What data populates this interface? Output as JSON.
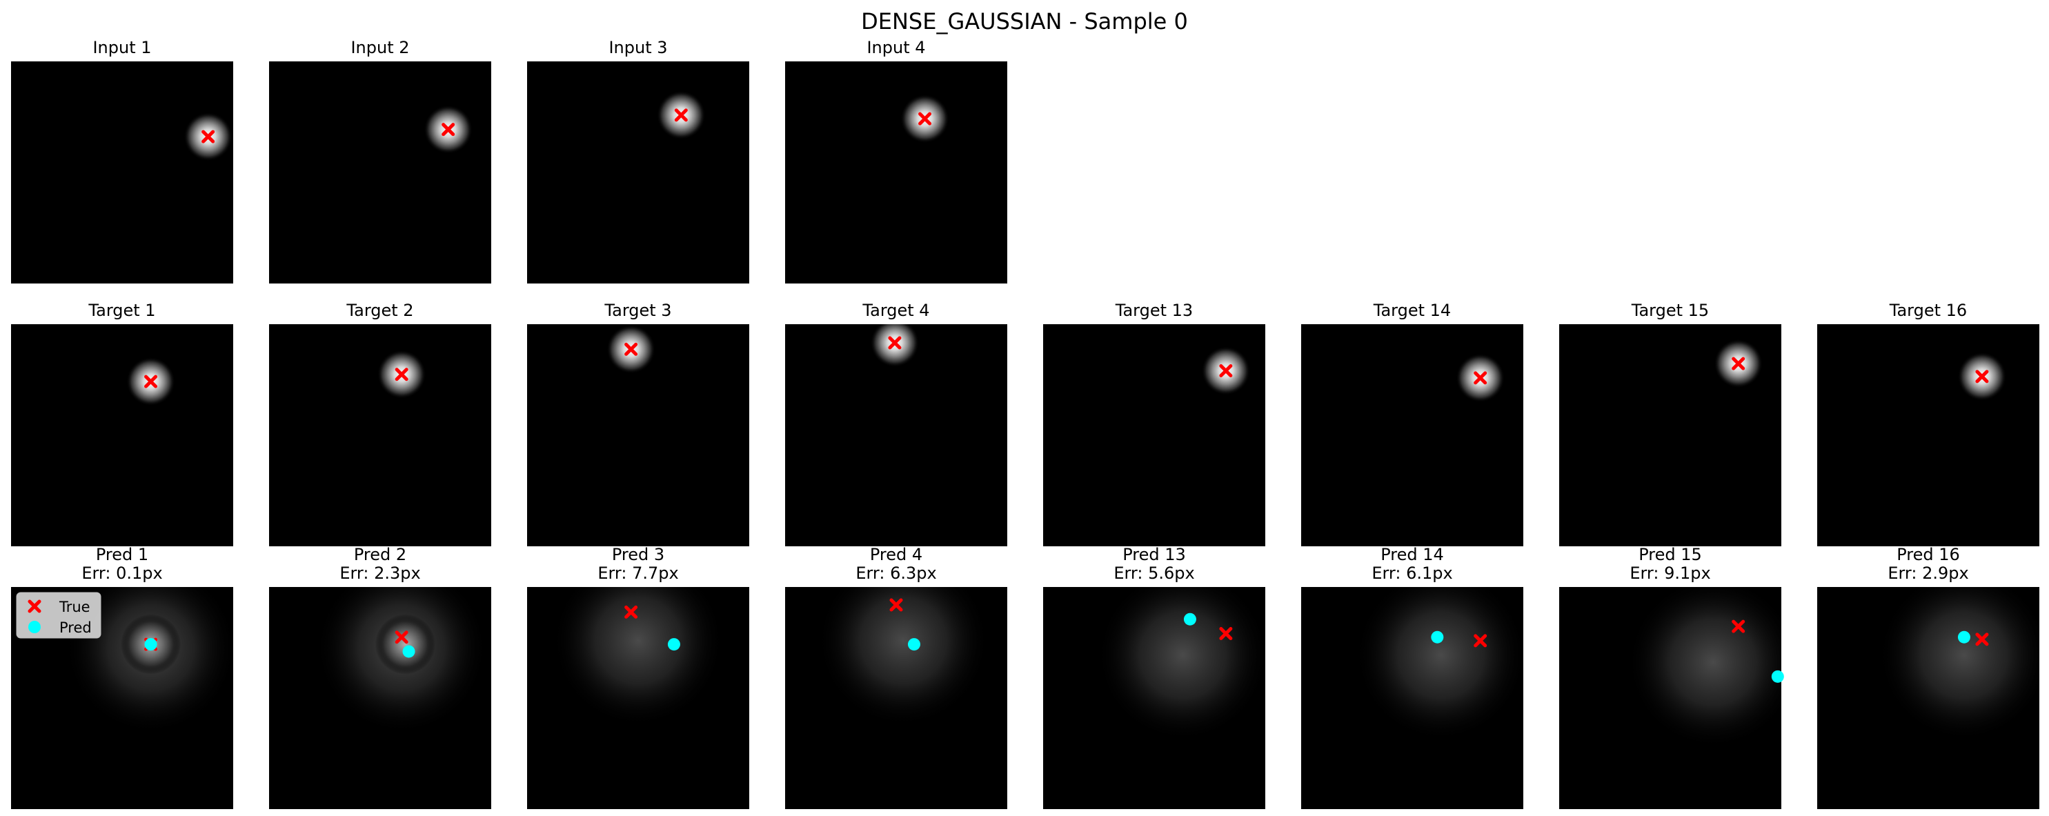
{
  "chart_data": {
    "type": "image-grid",
    "title": "DENSE_GAUSSIAN - Sample 0",
    "grid_size": 31,
    "legend": {
      "placement": "upper-left",
      "in_panel": "pred-1",
      "items": [
        {
          "label": "True",
          "marker": "x",
          "color": "#ff0000"
        },
        {
          "label": "Pred",
          "marker": "circle",
          "color": "#00ffff"
        }
      ]
    },
    "colors": {
      "true_marker": "#ff0000",
      "pred_marker": "#00ffff"
    },
    "rows": [
      {
        "name": "Input",
        "panels": [
          {
            "title": "Input 1",
            "truth": [
              27,
              10
            ],
            "blob": [
              27,
              10
            ]
          },
          {
            "title": "Input 2",
            "truth": [
              24.5,
              9
            ],
            "blob": [
              24.5,
              9
            ]
          },
          {
            "title": "Input 3",
            "truth": [
              21,
              7
            ],
            "blob": [
              21,
              7
            ]
          },
          {
            "title": "Input 4",
            "truth": [
              19,
              7.5
            ],
            "blob": [
              19,
              7.5
            ]
          }
        ]
      },
      {
        "name": "Target",
        "panels": [
          {
            "title": "Target 1",
            "truth": [
              19,
              7.5
            ],
            "blob": [
              19,
              7.5
            ]
          },
          {
            "title": "Target 2",
            "truth": [
              18,
              6.5
            ],
            "blob": [
              18,
              6.5
            ]
          },
          {
            "title": "Target 3",
            "truth": [
              14,
              3
            ],
            "blob": [
              14,
              3
            ]
          },
          {
            "title": "Target 4",
            "truth": [
              14.8,
              2.1
            ],
            "blob": [
              14.8,
              2.1
            ]
          },
          {
            "title": "Target 13",
            "truth": [
              25,
              6
            ],
            "blob": [
              25,
              6
            ]
          },
          {
            "title": "Target 14",
            "truth": [
              24.5,
              7
            ],
            "blob": [
              24.5,
              7
            ]
          },
          {
            "title": "Target 15",
            "truth": [
              24.5,
              5
            ],
            "blob": [
              24.5,
              5
            ]
          },
          {
            "title": "Target 16",
            "truth": [
              22.5,
              6.8
            ],
            "blob": [
              22.5,
              6.8
            ]
          }
        ]
      },
      {
        "name": "Pred",
        "panels": [
          {
            "title": "Pred 1",
            "err": "Err: 0.1px",
            "truth": [
              19,
              7.5
            ],
            "pred": [
              19,
              7.5
            ],
            "blob": [
              19,
              7.5
            ],
            "diffuse": [
              19,
              8
            ]
          },
          {
            "title": "Pred 2",
            "err": "Err: 2.3px",
            "truth": [
              18,
              6.5
            ],
            "pred": [
              19,
              8.5
            ],
            "blob": [
              18.5,
              7.5
            ],
            "diffuse": [
              18,
              8
            ]
          },
          {
            "title": "Pred 3",
            "err": "Err: 7.7px",
            "truth": [
              14,
              3
            ],
            "pred": [
              20,
              7.5
            ],
            "diffuse": [
              15,
              7
            ]
          },
          {
            "title": "Pred 4",
            "err": "Err: 6.3px",
            "truth": [
              15,
              2
            ],
            "pred": [
              17.5,
              7.5
            ],
            "diffuse": [
              16,
              7
            ]
          },
          {
            "title": "Pred 13",
            "err": "Err: 5.6px",
            "truth": [
              25,
              6
            ],
            "pred": [
              20,
              4
            ],
            "diffuse": [
              19,
              9
            ]
          },
          {
            "title": "Pred 14",
            "err": "Err: 6.1px",
            "truth": [
              24.5,
              7
            ],
            "pred": [
              18.5,
              6.5
            ],
            "diffuse": [
              19,
              9
            ]
          },
          {
            "title": "Pred 15",
            "err": "Err: 9.1px",
            "truth": [
              24.5,
              5
            ],
            "pred": [
              30,
              12
            ],
            "diffuse": [
              21,
              10
            ]
          },
          {
            "title": "Pred 16",
            "err": "Err: 2.9px",
            "truth": [
              22.5,
              6.8
            ],
            "pred": [
              20,
              6.5
            ],
            "diffuse": [
              20,
              9
            ]
          }
        ]
      }
    ]
  }
}
